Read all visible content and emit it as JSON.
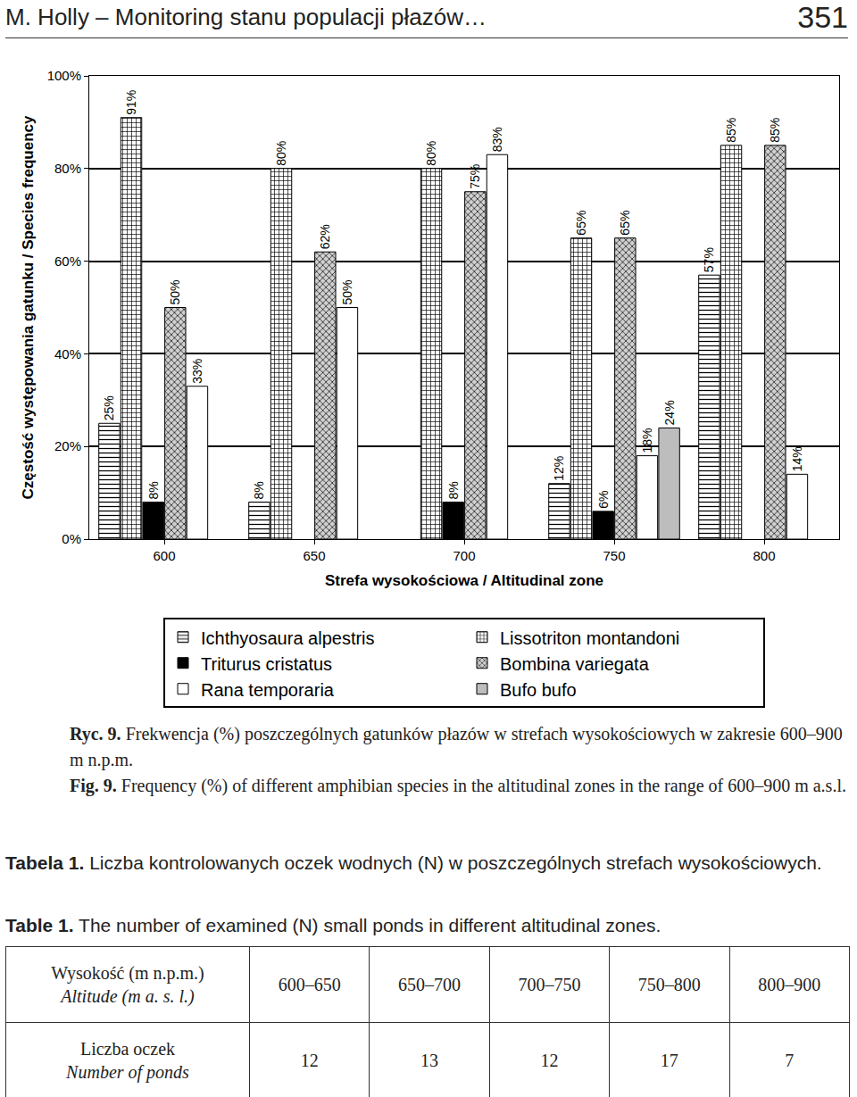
{
  "header": {
    "left": "M. Holly – Monitoring stanu populacji płazów…",
    "right": "351"
  },
  "chart_data": {
    "type": "bar",
    "x_label": "Strefa wysokościowa / Altitudinal zone",
    "y_label": "Częstość występowania gatunku / Species frequency",
    "categories": [
      "600",
      "650",
      "700",
      "750",
      "800"
    ],
    "series": [
      {
        "name": "Ichthyosaura alpestris",
        "color": "#ffffff",
        "marker": "horizontal_lines",
        "values": [
          25,
          8,
          null,
          12,
          57
        ],
        "value_labels": [
          "25%",
          "8%",
          null,
          "12%",
          "57%"
        ]
      },
      {
        "name": "Lissotriton montandoni",
        "color": "#ffffff",
        "marker": "crosshatch",
        "values": [
          91,
          80,
          80,
          65,
          85
        ],
        "value_labels": [
          "91%",
          "80%",
          "80%",
          "65%",
          "85%"
        ]
      },
      {
        "name": "Triturus cristatus",
        "color": "#000000",
        "marker": "solid",
        "values": [
          8,
          null,
          8,
          6,
          null
        ],
        "value_labels": [
          "8%",
          null,
          "8%",
          "6%",
          null
        ]
      },
      {
        "name": "Bombina variegata",
        "color": "#d0d0d0",
        "marker": "dense_crosshatch",
        "values": [
          50,
          62,
          75,
          65,
          85
        ],
        "value_labels": [
          "50%",
          "62%",
          "75%",
          "65%",
          "85%"
        ]
      },
      {
        "name": "Rana temporaria",
        "color": "#ffffff",
        "marker": "solid",
        "values": [
          33,
          50,
          83,
          18,
          14
        ],
        "value_labels": [
          "33%",
          "50%",
          "83%",
          "18%",
          "14%"
        ]
      },
      {
        "name": "Bufo bufo",
        "color": "#bdbdbd",
        "marker": "solid",
        "values": [
          null,
          null,
          null,
          24,
          null
        ],
        "value_labels": [
          null,
          null,
          null,
          "24%",
          null
        ]
      }
    ],
    "ylim": [
      0,
      100
    ],
    "yticks": [
      {
        "value": 0,
        "label": "0%"
      },
      {
        "value": 20,
        "label": "20%"
      },
      {
        "value": 40,
        "label": "40%"
      },
      {
        "value": 60,
        "label": "60%"
      },
      {
        "value": 80,
        "label": "80%"
      },
      {
        "value": 100,
        "label": "100%"
      }
    ],
    "grid": true,
    "legend": "bottom",
    "data_labels": true
  },
  "caption": {
    "pl": {
      "label": "Ryc. 9.",
      "text": "Frekwencja (%) poszczególnych gatunków płazów w strefach wysokościowych w zakresie 600–900 m n.p.m."
    },
    "en": {
      "label": "Fig. 9.",
      "text": "Frequency (%) of different amphibian species in the altitudinal zones in the range of 600–900 m a.s.l."
    }
  },
  "table_caption": {
    "pl": {
      "label": "Tabela 1.",
      "text": "Liczba kontrolowanych oczek wodnych (N) w poszczególnych strefach wysokościowych."
    },
    "en": {
      "label": "Table 1.",
      "text": "The number of examined (N) small ponds in different altitudinal zones."
    }
  },
  "table": {
    "rows": [
      [
        [
          "Wysokość (m n.p.m.)",
          "Altitude (m a. s. l.)"
        ],
        "600–650",
        "650–700",
        "700–750",
        "750–800",
        "800–900"
      ],
      [
        [
          "Liczba oczek",
          "Number of ponds"
        ],
        12,
        13,
        12,
        17,
        7
      ]
    ]
  }
}
